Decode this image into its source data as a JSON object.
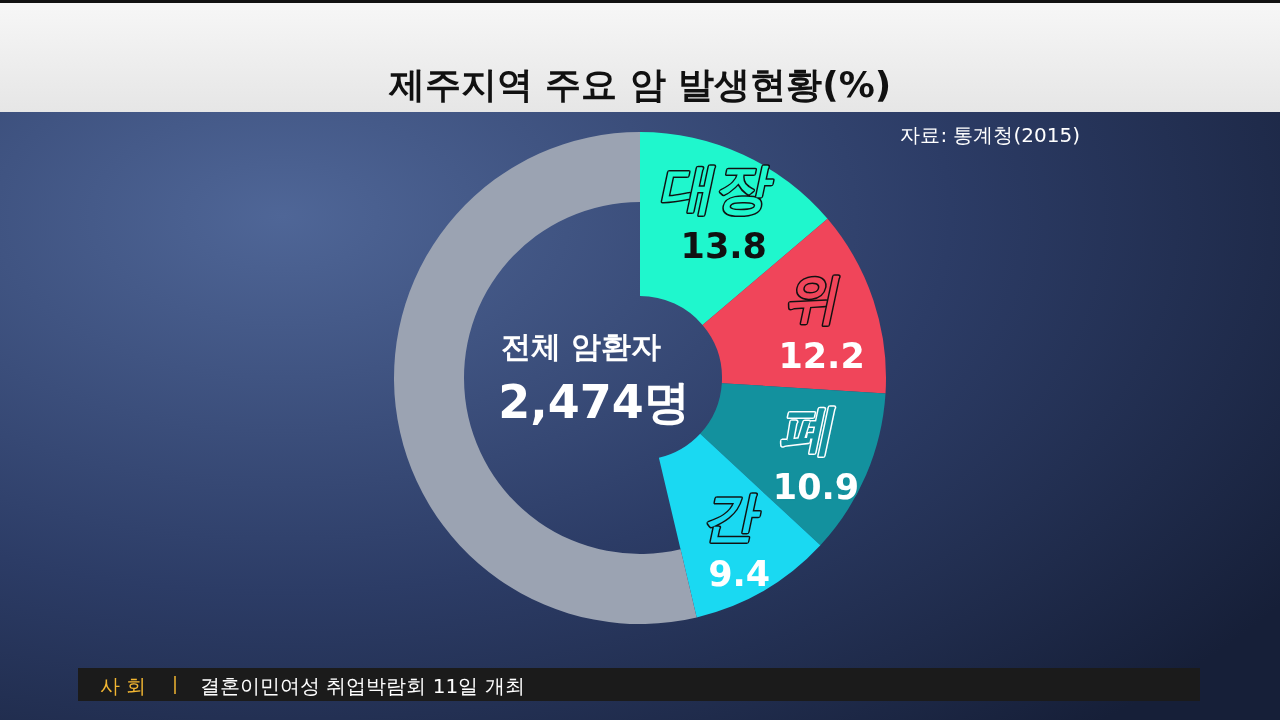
{
  "chart_data": {
    "type": "donut",
    "title": "제주지역 주요 암 발생현황(%)",
    "categories": [
      "대장",
      "위",
      "폐",
      "간",
      null
    ],
    "values": [
      13.8,
      12.2,
      10.9,
      9.4,
      53.7
    ],
    "colors": [
      "#1ff7cd",
      "#f0455a",
      "#13919e",
      "#1ad9f2",
      "#9ba3b2"
    ],
    "value_labels": [
      "13.8",
      "12.2",
      "10.9",
      "9.4",
      null
    ],
    "annotations": [
      "자료: 통계청(2015)",
      "전체 암환자",
      "2,474명",
      "사회",
      "결혼이민여성 취업박람회 11일 개최"
    ]
  }
}
